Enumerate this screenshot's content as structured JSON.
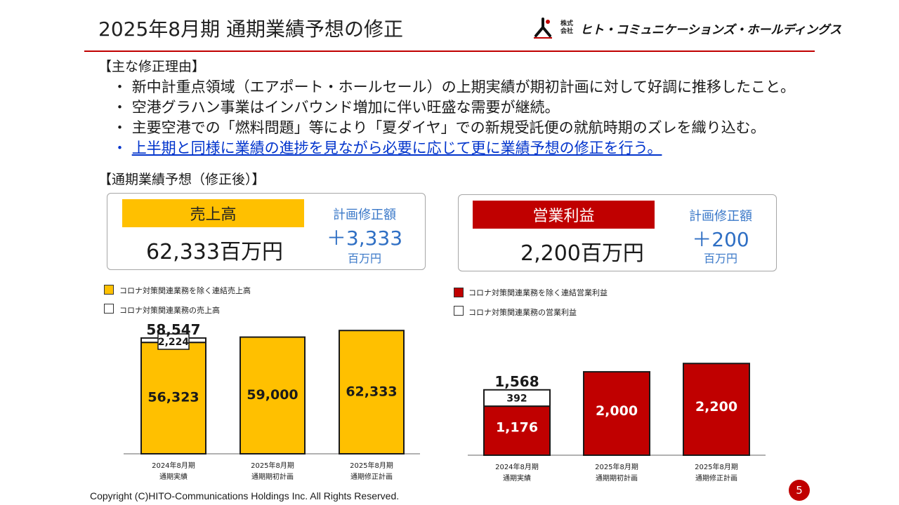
{
  "header": {
    "title": "2025年8月期 通期業績予想の修正",
    "logo_small": "株式会社",
    "logo_name": "ヒト・コミュニケーションズ・ホールディングス"
  },
  "reasons": {
    "heading": "【主な修正理由】",
    "bullet_mark": "・",
    "items": [
      "新中計重点領域（エアポート・ホールセール）の上期実績が期初計画に対して好調に推移したこと。",
      "空港グラハン事業はインバウンド増加に伴い旺盛な需要が継続。",
      "主要空港での「燃料問題」等により「夏ダイヤ」での新規受託便の就航時期のズレを織り込む。",
      "上半期と同様に業績の進捗を見ながら必要に応じて更に業績予想の修正を行う。"
    ]
  },
  "forecast": {
    "heading": "【通期業績予想（修正後）】",
    "sales": {
      "label": "売上高",
      "value": "62,333百万円",
      "revision_label": "計画修正額",
      "revision_amount": "＋3,333",
      "revision_unit": "百万円"
    },
    "profit": {
      "label": "営業利益",
      "value": "2,200百万円",
      "revision_label": "計画修正額",
      "revision_amount": "＋200",
      "revision_unit": "百万円"
    }
  },
  "colors": {
    "accent_red": "#c00000",
    "sales_yellow": "#ffc000",
    "revision_blue": "#2f6fc4",
    "link_blue": "#0033cc"
  },
  "chart_data": [
    {
      "type": "bar",
      "stacked": true,
      "categories": [
        [
          "2024年8月期",
          "通期実績"
        ],
        [
          "2025年8月期",
          "通期期初計画"
        ],
        [
          "2025年8月期",
          "通期修正計画"
        ]
      ],
      "series": [
        {
          "name": "コロナ対策関連業務を除く連結売上高",
          "color": "#ffc000",
          "values": [
            56323,
            59000,
            62333
          ]
        },
        {
          "name": "コロナ対策関連業務の売上高",
          "color": "#ffffff",
          "values": [
            2224,
            0,
            0
          ]
        }
      ],
      "data_labels": [
        [
          "56,323",
          "59,000",
          "62,333"
        ],
        [
          "2,224",
          "",
          ""
        ]
      ],
      "totals": [
        "58,547",
        "",
        ""
      ],
      "ylim": [
        0,
        66000
      ]
    },
    {
      "type": "bar",
      "stacked": true,
      "categories": [
        [
          "2024年8月期",
          "通期実績"
        ],
        [
          "2025年8月期",
          "通期期初計画"
        ],
        [
          "2025年8月期",
          "通期修正計画"
        ]
      ],
      "series": [
        {
          "name": "コロナ対策関連業務を除く連結営業利益",
          "color": "#c00000",
          "values": [
            1176,
            2000,
            2200
          ]
        },
        {
          "name": "コロナ対策関連業務の営業利益",
          "color": "#ffffff",
          "values": [
            392,
            0,
            0
          ]
        }
      ],
      "data_labels": [
        [
          "1,176",
          "2,000",
          "2,200"
        ],
        [
          "392",
          "",
          ""
        ]
      ],
      "totals": [
        "1,568",
        "",
        ""
      ],
      "ylim": [
        0,
        2340
      ]
    }
  ],
  "footer": {
    "copyright": "Copyright (C)HITO-Communications Holdings Inc. All Rights Reserved.",
    "page_number": "5"
  }
}
